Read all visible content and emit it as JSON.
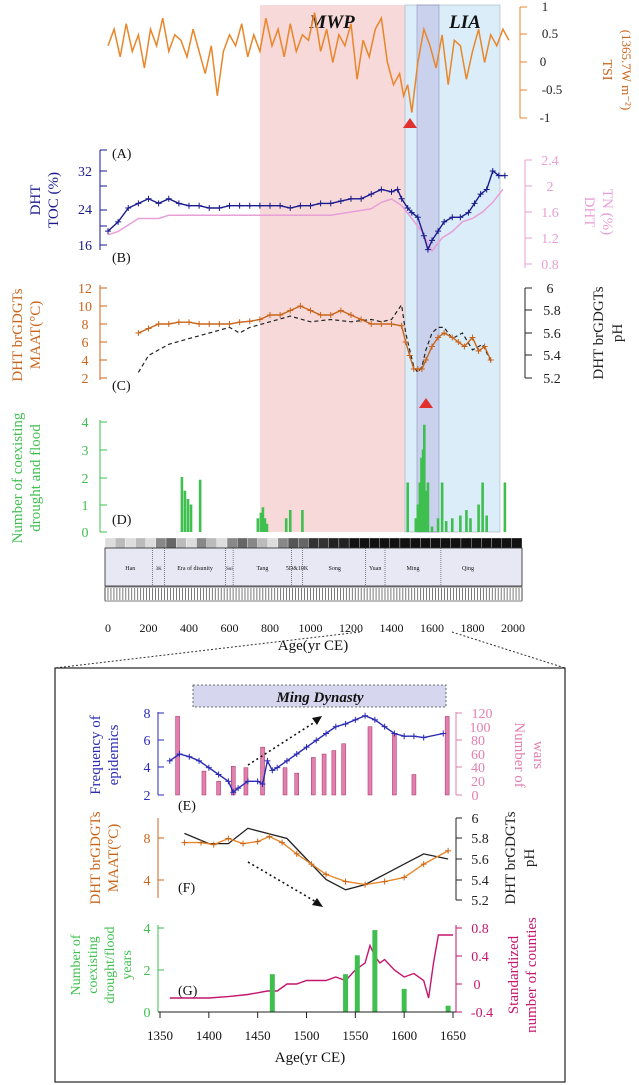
{
  "colors": {
    "tsi": "#e8862a",
    "toc": "#1a1a8c",
    "tn": "#e79fd6",
    "maat": "#c9651b",
    "ph": "#222222",
    "drought": "#3fbf4f",
    "mwp_fill": "#f6d2d2",
    "lia_fill": "#d6ecf8",
    "overlap_fill": "#c7cbea",
    "wars": "#e27fae",
    "epidemics": "#2a2ab5",
    "counties": "#c4156f",
    "arrow": "#e03030"
  },
  "top_panel": {
    "periods": {
      "mwp": "MWP",
      "lia": "LIA"
    },
    "panel_labels": {
      "a": "(A)",
      "b": "(B)",
      "c": "(C)",
      "d": "(D)"
    },
    "axes": {
      "tsi_label": "TSI",
      "tsi_unit": "(1365.7W m⁻²)",
      "toc_label_line1": "DHT",
      "toc_label_line2": "TOC (%)",
      "tn_label_line1": "DHT",
      "tn_label_line2": "TN (%)",
      "maat_label_line1": "DHT brGDGTs",
      "maat_label_line2": "MAAT(°C)",
      "ph_label_line1": "DHT brGDGTs",
      "ph_label_line2": "pH",
      "drought_label_line1": "Number of coexisting",
      "drought_label_line2": "drought and flood"
    },
    "dynasties": [
      "Han",
      "3K",
      "Era of disunity",
      "Sui",
      "Tang",
      "5D&10K",
      "Song",
      "Yuan",
      "Ming",
      "Qing"
    ],
    "xlabel": "Age(yr CE)"
  },
  "bottom_panel": {
    "title": "Ming Dynasty",
    "panel_labels": {
      "e": "(E)",
      "f": "(F)",
      "g": "(G)"
    },
    "axes": {
      "epi_line1": "Frequency of",
      "epi_line2": "epidemics",
      "wars_line1": "Number of",
      "wars_line2": "wars",
      "maat_line1": "DHT brGDGTs",
      "maat_line2": "MAAT(°C)",
      "ph_line1": "DHT brGDGTs",
      "ph_line2": "pH",
      "dr_line1": "Number of",
      "dr_line2": "coexisting",
      "dr_line3": "drought/flood",
      "dr_line4": "years",
      "cty_line1": "Standardized",
      "cty_line2": "number of counties"
    },
    "xlabel": "Age(yr CE)"
  },
  "chart_data": [
    {
      "type": "line",
      "id": "tsi",
      "ylabel": "TSI (1365.7W m⁻²)",
      "ylim": [
        -1,
        1
      ],
      "yticks": [
        -1,
        -0.5,
        0,
        0.5,
        1
      ],
      "x": [
        0,
        30,
        60,
        90,
        120,
        150,
        180,
        210,
        240,
        270,
        300,
        330,
        360,
        390,
        420,
        450,
        480,
        510,
        540,
        570,
        600,
        630,
        660,
        690,
        720,
        750,
        780,
        810,
        840,
        870,
        900,
        930,
        960,
        990,
        1020,
        1050,
        1080,
        1110,
        1140,
        1170,
        1200,
        1230,
        1260,
        1290,
        1320,
        1350,
        1380,
        1410,
        1440,
        1460,
        1480,
        1500,
        1530,
        1560,
        1590,
        1620,
        1650,
        1680,
        1710,
        1740,
        1770,
        1800,
        1830,
        1860,
        1890,
        1920,
        1950,
        1980
      ],
      "y": [
        0.3,
        0.6,
        0.1,
        0.7,
        0.2,
        0.5,
        -0.1,
        0.6,
        0.3,
        0.8,
        0.2,
        0.5,
        0.4,
        0.1,
        0.6,
        0.2,
        -0.2,
        0.3,
        -0.6,
        0.2,
        0.5,
        0.3,
        0.7,
        0.1,
        0.5,
        0.2,
        0.8,
        0.3,
        0.6,
        0.1,
        0.7,
        0.2,
        0.5,
        0.4,
        0.9,
        0.2,
        0.6,
        0.0,
        0.5,
        0.3,
        0.7,
        -0.3,
        0.4,
        0.1,
        0.6,
        0.8,
        0.0,
        -0.4,
        -0.2,
        -0.6,
        -0.4,
        -0.9,
        0.0,
        0.6,
        0.3,
        -0.1,
        0.5,
        -0.4,
        0.4,
        0.3,
        -0.3,
        0.2,
        0.6,
        0.0,
        0.5,
        0.3,
        0.6,
        0.4
      ]
    },
    {
      "type": "line",
      "id": "toc",
      "ylabel": "DHT TOC (%)",
      "ylim": [
        14,
        34
      ],
      "yticks": [
        16,
        24,
        32
      ],
      "x": [
        0,
        50,
        100,
        150,
        200,
        250,
        300,
        350,
        400,
        450,
        500,
        550,
        600,
        650,
        700,
        750,
        800,
        850,
        900,
        950,
        1000,
        1050,
        1100,
        1150,
        1200,
        1250,
        1300,
        1350,
        1400,
        1430,
        1450,
        1480,
        1500,
        1530,
        1560,
        1580,
        1600,
        1630,
        1660,
        1700,
        1740,
        1780,
        1810,
        1840,
        1870,
        1900,
        1930,
        1960
      ],
      "y": [
        19,
        21,
        24,
        25,
        26,
        25,
        26,
        25,
        24.5,
        24.5,
        24,
        24,
        24.5,
        24.5,
        24.5,
        24.5,
        24.5,
        24.5,
        24,
        24.5,
        24.5,
        25,
        25,
        25.5,
        26,
        26,
        27,
        28,
        27.5,
        28,
        26,
        24,
        23,
        22,
        18,
        15,
        17,
        19,
        21,
        22,
        22,
        23,
        25,
        27,
        28,
        32,
        31,
        31
      ]
    },
    {
      "type": "line",
      "id": "tn",
      "ylabel": "DHT TN (%)",
      "ylim": [
        0.8,
        2.4
      ],
      "yticks": [
        0.8,
        1.2,
        1.6,
        2.0,
        2.4
      ],
      "x": [
        0,
        50,
        100,
        150,
        200,
        250,
        300,
        400,
        500,
        600,
        700,
        800,
        900,
        1000,
        1100,
        1200,
        1300,
        1350,
        1400,
        1450,
        1500,
        1550,
        1600,
        1650,
        1700,
        1750,
        1800,
        1850,
        1900,
        1950
      ],
      "y": [
        1.25,
        1.3,
        1.4,
        1.5,
        1.5,
        1.5,
        1.55,
        1.55,
        1.55,
        1.55,
        1.55,
        1.55,
        1.55,
        1.55,
        1.55,
        1.6,
        1.65,
        1.75,
        1.8,
        1.7,
        1.5,
        1.3,
        1.0,
        1.2,
        1.3,
        1.45,
        1.5,
        1.6,
        1.75,
        1.95
      ]
    },
    {
      "type": "line",
      "id": "maat",
      "ylabel": "DHT brGDGTs MAAT(°C)",
      "ylim": [
        2,
        12
      ],
      "yticks": [
        2,
        4,
        6,
        8,
        10,
        12
      ],
      "x": [
        150,
        200,
        250,
        300,
        350,
        400,
        450,
        500,
        550,
        600,
        650,
        700,
        750,
        800,
        850,
        900,
        950,
        1000,
        1050,
        1100,
        1150,
        1200,
        1250,
        1300,
        1350,
        1400,
        1450,
        1470,
        1490,
        1510,
        1530,
        1550,
        1570,
        1600,
        1630,
        1660,
        1700,
        1730,
        1760,
        1800,
        1830,
        1860,
        1890
      ],
      "y": [
        7,
        7.5,
        8,
        8,
        8.2,
        8.2,
        8,
        8,
        8,
        8,
        8.2,
        8.3,
        8.5,
        9,
        9,
        9.5,
        10,
        9.5,
        9,
        9,
        9.5,
        9,
        8.5,
        8,
        8,
        8,
        7.8,
        6,
        4.5,
        3,
        3,
        3,
        4,
        5.5,
        6.5,
        7,
        6.5,
        6,
        5.5,
        6.5,
        5,
        5.5,
        4
      ]
    },
    {
      "type": "line",
      "id": "ph",
      "ylabel": "DHT brGDGTs pH",
      "ylim": [
        5.2,
        6.0
      ],
      "yticks": [
        5.2,
        5.4,
        5.6,
        5.8,
        6.0
      ],
      "x": [
        150,
        200,
        250,
        300,
        400,
        500,
        600,
        650,
        700,
        800,
        900,
        1000,
        1100,
        1200,
        1300,
        1350,
        1400,
        1430,
        1450,
        1470,
        1490,
        1510,
        1530,
        1550,
        1570,
        1600,
        1630,
        1660,
        1700,
        1750,
        1800,
        1850,
        1890
      ],
      "y": [
        5.25,
        5.4,
        5.45,
        5.5,
        5.55,
        5.6,
        5.65,
        5.6,
        5.65,
        5.7,
        5.75,
        5.7,
        5.72,
        5.7,
        5.72,
        5.7,
        5.72,
        5.8,
        5.85,
        5.6,
        5.45,
        5.3,
        5.25,
        5.3,
        5.45,
        5.6,
        5.65,
        5.65,
        5.55,
        5.6,
        5.45,
        5.5,
        5.35
      ]
    },
    {
      "type": "bar",
      "id": "coexisting-drought-flood",
      "ylabel": "Number of coexisting drought and flood",
      "ylim": [
        0,
        4
      ],
      "yticks": [
        0,
        1,
        2,
        3,
        4
      ],
      "x": [
        365,
        380,
        395,
        410,
        455,
        740,
        755,
        765,
        775,
        785,
        880,
        900,
        960,
        1480,
        1520,
        1530,
        1540,
        1548,
        1556,
        1562,
        1570,
        1580,
        1600,
        1630,
        1650,
        1670,
        1700,
        1740,
        1770,
        1790,
        1830,
        1850,
        1870,
        1960
      ],
      "values": [
        2,
        1.5,
        1.2,
        1,
        1.9,
        0.5,
        0.7,
        0.9,
        0.5,
        0.3,
        0.5,
        0.8,
        0.8,
        1.8,
        0.5,
        1,
        1.8,
        2.7,
        3,
        3.9,
        1.5,
        1.8,
        0.2,
        0.5,
        1.8,
        0.4,
        0.5,
        0.6,
        0.8,
        0.5,
        1,
        1.8,
        0.6,
        1.8
      ]
    },
    {
      "type": "bar",
      "id": "wars",
      "ylabel": "Number of wars",
      "ylim": [
        0,
        120
      ],
      "yticks": [
        0,
        20,
        40,
        60,
        80,
        100,
        120
      ],
      "x": [
        1368,
        1395,
        1410,
        1425,
        1438,
        1455,
        1478,
        1490,
        1507,
        1518,
        1528,
        1538,
        1565,
        1590,
        1610,
        1644
      ],
      "values": [
        115,
        35,
        20,
        42,
        40,
        70,
        40,
        32,
        55,
        60,
        65,
        75,
        100,
        90,
        30,
        115
      ]
    },
    {
      "type": "line",
      "id": "epidemics",
      "ylabel": "Frequency of epidemics",
      "ylim": [
        2,
        8
      ],
      "yticks": [
        2,
        4,
        6,
        8
      ],
      "x": [
        1360,
        1370,
        1380,
        1390,
        1400,
        1410,
        1420,
        1425,
        1430,
        1440,
        1450,
        1455,
        1460,
        1465,
        1470,
        1480,
        1490,
        1500,
        1510,
        1520,
        1530,
        1540,
        1550,
        1560,
        1570,
        1580,
        1590,
        1600,
        1610,
        1620,
        1640
      ],
      "y": [
        4.5,
        5,
        4.8,
        4.5,
        4,
        3.5,
        3,
        2.2,
        2.5,
        3,
        3,
        2.8,
        4.5,
        3.8,
        4,
        4.5,
        5,
        5.5,
        6,
        6.5,
        7,
        7.2,
        7.5,
        7.8,
        7.5,
        7,
        6.5,
        6.3,
        6.3,
        6.2,
        6.5
      ]
    },
    {
      "type": "line",
      "id": "maat-ming",
      "ylabel": "DHT brGDGTs MAAT(°C)",
      "ylim": [
        2,
        10
      ],
      "yticks": [
        4,
        8
      ],
      "x": [
        1375,
        1392,
        1405,
        1420,
        1435,
        1450,
        1462,
        1475,
        1490,
        1505,
        1520,
        1540,
        1560,
        1580,
        1600,
        1620,
        1645
      ],
      "y": [
        7.6,
        7.6,
        7.4,
        8.0,
        7.5,
        7.7,
        8.2,
        7.6,
        6.5,
        5.5,
        4.5,
        3.8,
        3.5,
        3.8,
        4.2,
        5.5,
        6.8
      ]
    },
    {
      "type": "line",
      "id": "ph-ming",
      "ylabel": "DHT brGDGTs pH",
      "ylim": [
        5.2,
        6.0
      ],
      "yticks": [
        5.2,
        5.4,
        5.6,
        5.8,
        6.0
      ],
      "x": [
        1375,
        1400,
        1420,
        1440,
        1460,
        1480,
        1500,
        1520,
        1540,
        1560,
        1580,
        1600,
        1620,
        1645
      ],
      "y": [
        5.85,
        5.75,
        5.75,
        5.9,
        5.85,
        5.8,
        5.6,
        5.4,
        5.3,
        5.35,
        5.45,
        5.55,
        5.65,
        5.6
      ]
    },
    {
      "type": "bar",
      "id": "drought-flood-ming",
      "ylabel": "Number of coexisting drought/flood years",
      "ylim": [
        0,
        4
      ],
      "yticks": [
        0,
        2,
        4
      ],
      "x": [
        1465,
        1540,
        1552,
        1570,
        1600,
        1645
      ],
      "values": [
        1.8,
        1.8,
        2.7,
        3.9,
        1.1,
        0.3
      ]
    },
    {
      "type": "line",
      "id": "counties",
      "ylabel": "Standardized number of counties",
      "ylim": [
        -0.4,
        0.8
      ],
      "yticks": [
        -0.4,
        0,
        0.4,
        0.8
      ],
      "x": [
        1360,
        1380,
        1400,
        1420,
        1440,
        1460,
        1470,
        1480,
        1490,
        1500,
        1510,
        1520,
        1530,
        1540,
        1550,
        1560,
        1565,
        1570,
        1575,
        1580,
        1590,
        1600,
        1610,
        1620,
        1625,
        1630,
        1635,
        1640,
        1650
      ],
      "y": [
        -0.2,
        -0.2,
        -0.2,
        -0.18,
        -0.15,
        -0.1,
        -0.1,
        0.0,
        0.0,
        0.05,
        0.05,
        0.05,
        0.1,
        0.05,
        0.2,
        0.3,
        0.55,
        0.4,
        0.3,
        0.35,
        0.2,
        0.1,
        0.15,
        0.05,
        -0.2,
        0.3,
        0.7,
        0.7,
        0.7
      ]
    }
  ]
}
